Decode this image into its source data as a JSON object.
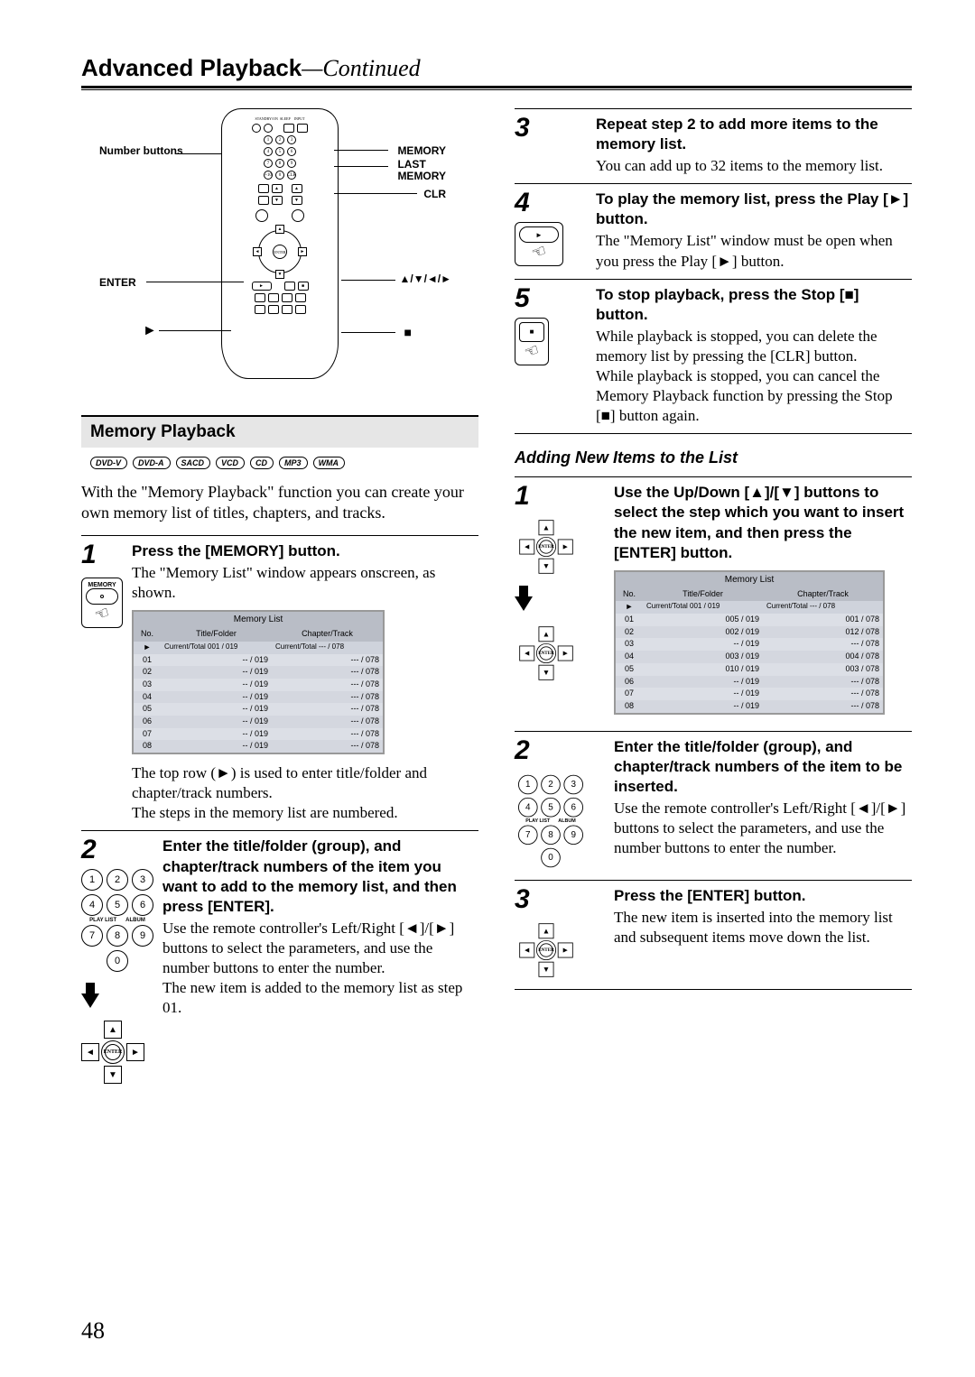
{
  "page": {
    "title": "Advanced Playback",
    "continued": "—Continued",
    "number": "48"
  },
  "remote_labels": {
    "number_buttons": "Number buttons",
    "enter": "ENTER",
    "play": "",
    "memory": "MEMORY",
    "last_memory": "LAST MEMORY",
    "clr": "CLR",
    "arrows": "▲/▼/◄/►",
    "stop": ""
  },
  "section": {
    "heading": "Memory Playback",
    "discs": [
      "DVD-V",
      "DVD-A",
      "SACD",
      "VCD",
      "CD",
      "MP3",
      "WMA"
    ],
    "intro": "With the \"Memory Playback\" function you can create your own memory list of titles, chapters, and tracks."
  },
  "sub_section": "Adding New Items to the List",
  "left_steps": {
    "s1": {
      "num": "1",
      "btn_label": "MEMORY",
      "head": "Press the [MEMORY] button.",
      "body1": "The \"Memory List\" window appears onscreen, as shown.",
      "body2": "The top row (►) is used to enter title/folder and chapter/track numbers.",
      "body3": "The steps in the memory list are numbered."
    },
    "s2": {
      "num": "2",
      "head": "Enter the title/folder (group), and chapter/track numbers of the item you want to add to the memory list, and then press [ENTER].",
      "body1": "Use the remote controller's Left/Right [◄]/[►] buttons to select the parameters, and use the number buttons to enter the number.",
      "body2": "The new item is added to the memory list as step 01."
    }
  },
  "memlist1": {
    "title": "Memory List",
    "col_no": "No.",
    "col_tf": "Title/Folder",
    "col_ct": "Chapter/Track",
    "sub_left": "Current/Total 001 / 019",
    "sub_right": "Current/Total --- / 078",
    "rows": [
      {
        "n": "01",
        "tf": "-- / 019",
        "ct": "--- / 078"
      },
      {
        "n": "02",
        "tf": "-- / 019",
        "ct": "--- / 078"
      },
      {
        "n": "03",
        "tf": "-- / 019",
        "ct": "--- / 078"
      },
      {
        "n": "04",
        "tf": "-- / 019",
        "ct": "--- / 078"
      },
      {
        "n": "05",
        "tf": "-- / 019",
        "ct": "--- / 078"
      },
      {
        "n": "06",
        "tf": "-- / 019",
        "ct": "--- / 078"
      },
      {
        "n": "07",
        "tf": "-- / 019",
        "ct": "--- / 078"
      },
      {
        "n": "08",
        "tf": "-- / 019",
        "ct": "--- / 078"
      }
    ]
  },
  "memlist2": {
    "title": "Memory List",
    "col_no": "No.",
    "col_tf": "Title/Folder",
    "col_ct": "Chapter/Track",
    "sub_left": "Current/Total 001 / 019",
    "sub_right": "Current/Total --- / 078",
    "rows": [
      {
        "n": "01",
        "tf": "005 / 019",
        "ct": "001 / 078"
      },
      {
        "n": "02",
        "tf": "002 / 019",
        "ct": "012 / 078"
      },
      {
        "n": "03",
        "tf": "-- / 019",
        "ct": "--- / 078"
      },
      {
        "n": "04",
        "tf": "003 / 019",
        "ct": "004 / 078"
      },
      {
        "n": "05",
        "tf": "010 / 019",
        "ct": "003 / 078"
      },
      {
        "n": "06",
        "tf": "-- / 019",
        "ct": "--- / 078"
      },
      {
        "n": "07",
        "tf": "-- / 019",
        "ct": "--- / 078"
      },
      {
        "n": "08",
        "tf": "-- / 019",
        "ct": "--- / 078"
      }
    ]
  },
  "right_steps": {
    "s3": {
      "num": "3",
      "head": "Repeat step 2 to add more items to the memory list.",
      "body": "You can add up to 32 items to the memory list."
    },
    "s4": {
      "num": "4",
      "head": "To play the memory list, press the Play [►] button.",
      "body": "The \"Memory List\" window must be open when you press the Play [►] button."
    },
    "s5": {
      "num": "5",
      "head": "To stop playback, press the Stop [■] button.",
      "body1": "While playback is stopped, you can delete the memory list by pressing the [CLR] button.",
      "body2": "While playback is stopped, you can cancel the Memory Playback function by pressing the Stop [■] button again."
    }
  },
  "add_steps": {
    "s1": {
      "num": "1",
      "head": "Use the Up/Down [▲]/[▼] buttons to select the step which you want to insert the new item, and then press the [ENTER] button."
    },
    "s2": {
      "num": "2",
      "head": "Enter the title/folder (group), and chapter/track numbers of the item to be inserted.",
      "body": "Use the remote controller's Left/Right [◄]/[►] buttons to select the parameters, and use the number buttons to enter the number."
    },
    "s3": {
      "num": "3",
      "head": "Press the [ENTER] button.",
      "body": "The new item is inserted into the memory list and subsequent items move down the list."
    }
  },
  "keypad": [
    "1",
    "2",
    "3",
    "4",
    "5",
    "6",
    "7",
    "8",
    "9",
    "0"
  ],
  "keypad_labels": {
    "playlist": "PLAY LIST",
    "album": "ALBUM"
  },
  "dpad_center": "ENTER",
  "colors": {
    "bg": "#ffffff",
    "text": "#000000",
    "heading_bg": "#e6e6e6",
    "table_hdr": "#b9bdc6",
    "table_sub": "#cfd3dc",
    "table_row": "#dcdfe6"
  }
}
